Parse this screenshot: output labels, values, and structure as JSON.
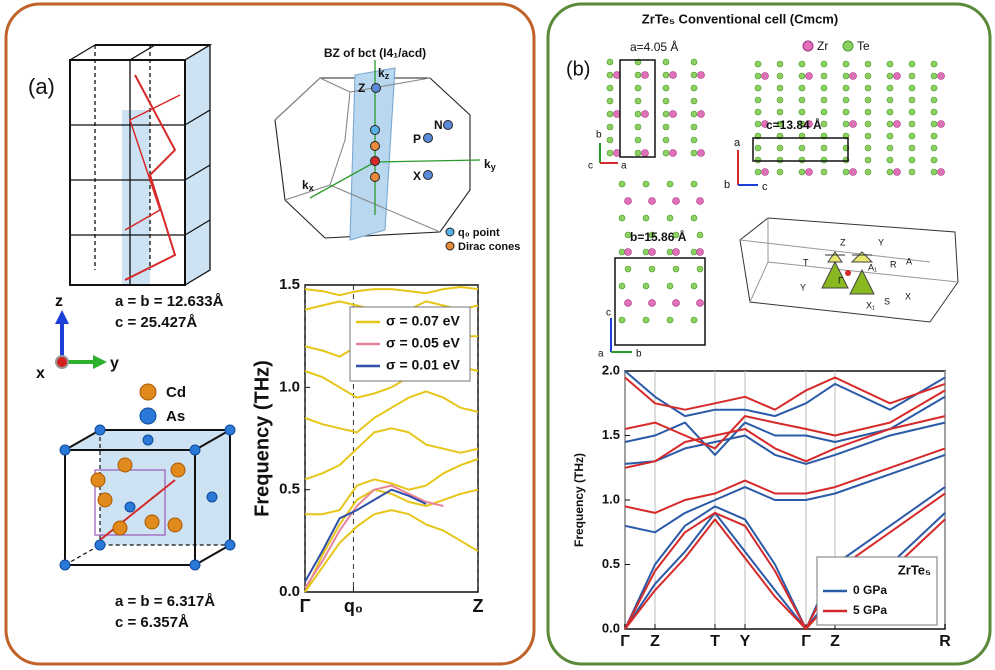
{
  "panel_a": {
    "label": "(a)",
    "supercell": {
      "lattice_ab": "a = b = 12.633Å",
      "lattice_c": "c = 25.427Å"
    },
    "axes": {
      "z": "z",
      "x": "x",
      "y": "y"
    },
    "atoms": {
      "cd": "Cd",
      "as": "As"
    },
    "primitive": {
      "lattice_ab": "a = b = 6.317Å",
      "lattice_c": "c = 6.357Å"
    },
    "bz": {
      "title": "BZ of bct (I4₁/acd)",
      "kz": {
        "k": "k",
        "sub": "z"
      },
      "ky": {
        "k": "k",
        "sub": "y"
      },
      "kx": {
        "k": "k",
        "sub": "x"
      },
      "points": {
        "z": "Z",
        "p": "P",
        "n": "N",
        "x": "X"
      },
      "legend": {
        "q0": "q₀ point",
        "dirac": "Dirac cones"
      }
    }
  },
  "panel_b": {
    "label": "(b)",
    "title": "ZrTe₅   Conventional cell (Cmcm)",
    "lattice": {
      "a": "a=4.05 Å",
      "c": "c=13.84 Å",
      "b": "b=15.86 Å"
    },
    "atoms": {
      "zr": "Zr",
      "te": "Te"
    },
    "view1_axes": {
      "b": "b",
      "c": "c",
      "a": "a"
    },
    "view2_axes": {
      "a": "a",
      "b": "b",
      "c": "c"
    },
    "view3_axes": {
      "c": "c",
      "a": "a",
      "b": "b"
    },
    "bz_points": {
      "z": "Z",
      "y_top": "Y",
      "t": "T",
      "gamma": "Γ",
      "a1": "A₁",
      "r": "R",
      "a": "A",
      "y": "Y",
      "x1": "X₁",
      "s": "S",
      "x": "X"
    }
  },
  "chart_data": [
    {
      "type": "line",
      "ylabel": "Frequency  (THz)",
      "xlim": [
        0,
        1
      ],
      "xticks": [
        {
          "value": 0,
          "label": "Γ"
        },
        {
          "value": 0.28,
          "label": "q₀"
        },
        {
          "value": 1,
          "label": "Z"
        }
      ],
      "xgrid": "dashed",
      "ylim": [
        0,
        1.5
      ],
      "yticks": [
        {
          "value": 0,
          "label": "0.0"
        },
        {
          "value": 0.5,
          "label": "0.5"
        },
        {
          "value": 1,
          "label": "1.0"
        },
        {
          "value": 1.5,
          "label": "1.5"
        }
      ],
      "legend": "upper right",
      "legend_text_colored": true,
      "x": [
        0,
        0.1,
        0.2,
        0.3,
        0.4,
        0.5,
        0.6,
        0.7,
        0.8,
        0.9,
        1
      ],
      "series": [
        {
          "name": "σ = 0.07 eV",
          "color": "#e6c619",
          "bands": [
            [
              0,
              0.12,
              0.24,
              0.32,
              0.38,
              0.4,
              0.38,
              0.33,
              0.3,
              0.25,
              0.2
            ],
            [
              0,
              0.18,
              0.33,
              0.45,
              0.5,
              0.48,
              0.44,
              0.42,
              0.45,
              0.48,
              0.5
            ],
            [
              0.38,
              0.38,
              0.4,
              0.52,
              0.55,
              0.53,
              0.5,
              0.52,
              0.58,
              0.62,
              0.65
            ],
            [
              0.55,
              0.58,
              0.62,
              0.7,
              0.78,
              0.8,
              0.78,
              0.72,
              0.7,
              0.68,
              0.7
            ],
            [
              0.85,
              0.82,
              0.8,
              0.78,
              0.85,
              0.9,
              0.95,
              0.98,
              0.95,
              0.9,
              0.88
            ],
            [
              1.08,
              1.05,
              1,
              0.95,
              0.97,
              1,
              1.05,
              1.1,
              1.12,
              1.1,
              1.08
            ],
            [
              1.2,
              1.18,
              1.15,
              1.2,
              1.22,
              1.18,
              1.15,
              1.18,
              1.22,
              1.25,
              1.25
            ],
            [
              1.38,
              1.4,
              1.42,
              1.4,
              1.38,
              1.35,
              1.38,
              1.42,
              1.4,
              1.38,
              1.4
            ],
            [
              1.48,
              1.47,
              1.45,
              1.47,
              1.48,
              1.48,
              1.47,
              1.46,
              1.48,
              1.49,
              1.48
            ]
          ]
        },
        {
          "name": "σ = 0.05 eV",
          "color": "#e8859a",
          "bands": [
            [
              0.02,
              0.15,
              0.3,
              0.42,
              0.5,
              0.52,
              0.48,
              0.44,
              0.42,
              null,
              null
            ]
          ]
        },
        {
          "name": "σ = 0.01 eV",
          "color": "#2f4fa8",
          "bands": [
            [
              0.05,
              0.2,
              0.36,
              0.4,
              0.45,
              0.5,
              0.47,
              0.43,
              null,
              null,
              null
            ]
          ]
        }
      ]
    },
    {
      "type": "line",
      "ylabel": "Frequency (THz)",
      "xlim": [
        0,
        320
      ],
      "xticks": [
        {
          "value": 0,
          "label": "Γ"
        },
        {
          "value": 30,
          "label": "Z"
        },
        {
          "value": 90,
          "label": "T"
        },
        {
          "value": 120,
          "label": "Y"
        },
        {
          "value": 181,
          "label": "Γ"
        },
        {
          "value": 210,
          "label": "Z"
        },
        {
          "value": 320,
          "label": "R"
        }
      ],
      "xgrid": "solid",
      "ylim": [
        0,
        2
      ],
      "yticks": [
        {
          "value": 0,
          "label": "0.0"
        },
        {
          "value": 0.5,
          "label": "0.5"
        },
        {
          "value": 1,
          "label": "1.0"
        },
        {
          "value": 1.5,
          "label": "1.5"
        },
        {
          "value": 2,
          "label": "2.0"
        }
      ],
      "legend": "lower right",
      "legend_title": "ZrTe₅",
      "x": [
        0,
        30,
        60,
        90,
        120,
        150,
        181,
        210,
        265,
        320
      ],
      "series": [
        {
          "name": "0 GPa",
          "color": "#2a5aa8",
          "bands": [
            [
              0,
              0.35,
              0.6,
              0.9,
              0.6,
              0.3,
              0,
              0.3,
              0.5,
              0.9
            ],
            [
              0,
              0.5,
              0.8,
              0.95,
              0.85,
              0.5,
              0,
              0.5,
              0.8,
              1.1
            ],
            [
              0.8,
              0.75,
              0.9,
              1,
              1.1,
              1,
              1,
              1.05,
              1.2,
              1.35
            ],
            [
              1.28,
              1.3,
              1.4,
              1.45,
              1.5,
              1.35,
              1.28,
              1.35,
              1.5,
              1.6
            ],
            [
              1.45,
              1.5,
              1.6,
              1.35,
              1.6,
              1.5,
              1.5,
              1.45,
              1.55,
              1.8
            ],
            [
              2,
              1.8,
              1.65,
              1.7,
              1.7,
              1.65,
              1.75,
              1.9,
              1.7,
              1.95
            ]
          ]
        },
        {
          "name": "5 GPa",
          "color": "#d62a2a",
          "bands": [
            [
              0,
              0.3,
              0.55,
              0.85,
              0.55,
              0.25,
              0,
              0.25,
              0.45,
              0.85
            ],
            [
              0,
              0.45,
              0.75,
              0.9,
              0.8,
              0.45,
              0,
              0.45,
              0.75,
              1.05
            ],
            [
              0.95,
              0.9,
              1,
              1.05,
              1.15,
              1.05,
              1.05,
              1.1,
              1.25,
              1.4
            ],
            [
              1.25,
              1.3,
              1.45,
              1.5,
              1.55,
              1.4,
              1.3,
              1.4,
              1.55,
              1.65
            ],
            [
              1.55,
              1.6,
              1.5,
              1.4,
              1.65,
              1.6,
              1.55,
              1.5,
              1.6,
              1.85
            ],
            [
              1.95,
              1.75,
              1.7,
              1.75,
              1.8,
              1.7,
              1.85,
              1.95,
              1.75,
              1.9
            ]
          ]
        }
      ]
    }
  ]
}
